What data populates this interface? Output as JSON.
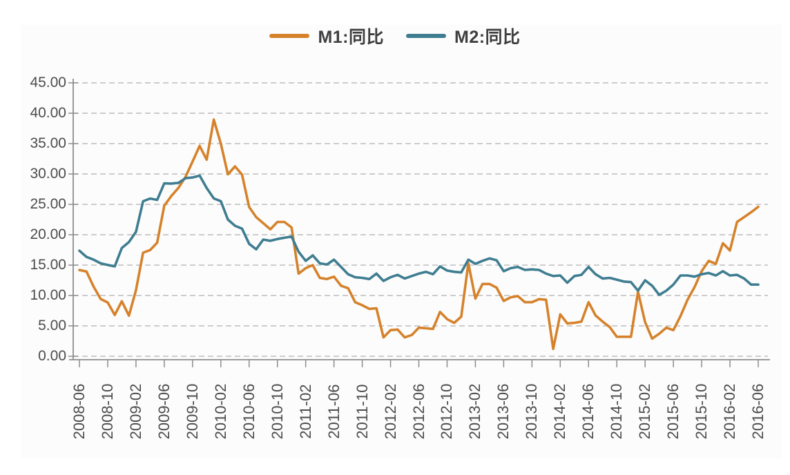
{
  "legend": {
    "items": [
      {
        "label": "M1:同比",
        "color": "#D5822B"
      },
      {
        "label": "M2:同比",
        "color": "#3F7D91"
      }
    ]
  },
  "y_axis": {
    "tick_labels": [
      "45.00",
      "40.00",
      "35.00",
      "30.00",
      "25.00",
      "20.00",
      "15.00",
      "10.00",
      "5.00",
      "0.00"
    ],
    "tick_values": [
      45,
      40,
      35,
      30,
      25,
      20,
      15,
      10,
      5,
      0
    ]
  },
  "x_axis": {
    "tick_labels": [
      "2008-06",
      "2008-10",
      "2009-02",
      "2009-06",
      "2009-10",
      "2010-02",
      "2010-06",
      "2010-10",
      "2011-02",
      "2011-06",
      "2011-10",
      "2012-02",
      "2012-06",
      "2012-10",
      "2013-02",
      "2013-06",
      "2013-10",
      "2014-02",
      "2014-06",
      "2014-10",
      "2015-02",
      "2015-06",
      "2015-10",
      "2016-02",
      "2016-06"
    ],
    "label_every_n_months": 4
  },
  "chart_data": {
    "type": "line",
    "title": "",
    "xlabel": "",
    "ylabel": "",
    "ylim": [
      0,
      45
    ],
    "grid": "horizontal-dashed",
    "legend_position": "top-center",
    "x": [
      "2008-06",
      "2008-07",
      "2008-08",
      "2008-09",
      "2008-10",
      "2008-11",
      "2008-12",
      "2009-01",
      "2009-02",
      "2009-03",
      "2009-04",
      "2009-05",
      "2009-06",
      "2009-07",
      "2009-08",
      "2009-09",
      "2009-10",
      "2009-11",
      "2009-12",
      "2010-01",
      "2010-02",
      "2010-03",
      "2010-04",
      "2010-05",
      "2010-06",
      "2010-07",
      "2010-08",
      "2010-09",
      "2010-10",
      "2010-11",
      "2010-12",
      "2011-01",
      "2011-02",
      "2011-03",
      "2011-04",
      "2011-05",
      "2011-06",
      "2011-07",
      "2011-08",
      "2011-09",
      "2011-10",
      "2011-11",
      "2011-12",
      "2012-01",
      "2012-02",
      "2012-03",
      "2012-04",
      "2012-05",
      "2012-06",
      "2012-07",
      "2012-08",
      "2012-09",
      "2012-10",
      "2012-11",
      "2012-12",
      "2013-01",
      "2013-02",
      "2013-03",
      "2013-04",
      "2013-05",
      "2013-06",
      "2013-07",
      "2013-08",
      "2013-09",
      "2013-10",
      "2013-11",
      "2013-12",
      "2014-01",
      "2014-02",
      "2014-03",
      "2014-04",
      "2014-05",
      "2014-06",
      "2014-07",
      "2014-08",
      "2014-09",
      "2014-10",
      "2014-11",
      "2014-12",
      "2015-01",
      "2015-02",
      "2015-03",
      "2015-04",
      "2015-05",
      "2015-06",
      "2015-07",
      "2015-08",
      "2015-09",
      "2015-10",
      "2015-11",
      "2015-12",
      "2016-01",
      "2016-02",
      "2016-03",
      "2016-04",
      "2016-05",
      "2016-06"
    ],
    "series": [
      {
        "name": "M1:同比",
        "color": "#D5822B",
        "values": [
          14.19,
          13.96,
          11.48,
          9.43,
          8.85,
          6.8,
          9.06,
          6.68,
          10.87,
          17.04,
          17.48,
          18.69,
          24.79,
          26.37,
          27.72,
          29.51,
          32.03,
          34.63,
          32.35,
          38.96,
          34.99,
          29.94,
          31.25,
          29.9,
          24.56,
          22.9,
          21.9,
          20.9,
          22.1,
          22.1,
          21.2,
          13.6,
          14.5,
          15.0,
          12.9,
          12.7,
          13.1,
          11.6,
          11.2,
          8.9,
          8.4,
          7.8,
          7.9,
          3.1,
          4.3,
          4.4,
          3.1,
          3.5,
          4.7,
          4.6,
          4.5,
          7.3,
          6.1,
          5.5,
          6.5,
          15.3,
          9.5,
          11.9,
          11.9,
          11.3,
          9.1,
          9.7,
          9.9,
          8.9,
          8.9,
          9.4,
          9.3,
          1.2,
          6.9,
          5.4,
          5.5,
          5.7,
          8.9,
          6.7,
          5.7,
          4.8,
          3.2,
          3.2,
          3.2,
          10.6,
          5.6,
          2.9,
          3.7,
          4.7,
          4.3,
          6.6,
          9.3,
          11.4,
          14.0,
          15.7,
          15.2,
          18.6,
          17.4,
          22.1,
          22.9,
          23.7,
          24.6
        ]
      },
      {
        "name": "M2:同比",
        "color": "#3F7D91",
        "values": [
          17.37,
          16.35,
          15.9,
          15.29,
          15.02,
          14.8,
          17.82,
          18.79,
          20.48,
          25.51,
          25.95,
          25.74,
          28.46,
          28.42,
          28.53,
          29.31,
          29.42,
          29.74,
          27.68,
          25.98,
          25.52,
          22.5,
          21.48,
          21.0,
          18.5,
          17.6,
          19.2,
          19.0,
          19.3,
          19.5,
          19.7,
          17.2,
          15.7,
          16.6,
          15.3,
          15.1,
          15.9,
          14.7,
          13.5,
          13.0,
          12.9,
          12.7,
          13.6,
          12.4,
          13.0,
          13.4,
          12.8,
          13.2,
          13.6,
          13.9,
          13.5,
          14.8,
          14.1,
          13.9,
          13.8,
          15.9,
          15.2,
          15.7,
          16.1,
          15.8,
          14.0,
          14.5,
          14.7,
          14.2,
          14.3,
          14.2,
          13.6,
          13.2,
          13.3,
          12.1,
          13.2,
          13.4,
          14.7,
          13.5,
          12.8,
          12.9,
          12.6,
          12.3,
          12.2,
          10.8,
          12.5,
          11.6,
          10.1,
          10.8,
          11.8,
          13.3,
          13.3,
          13.1,
          13.5,
          13.7,
          13.3,
          14.0,
          13.3,
          13.4,
          12.8,
          11.8,
          11.8
        ]
      }
    ]
  }
}
